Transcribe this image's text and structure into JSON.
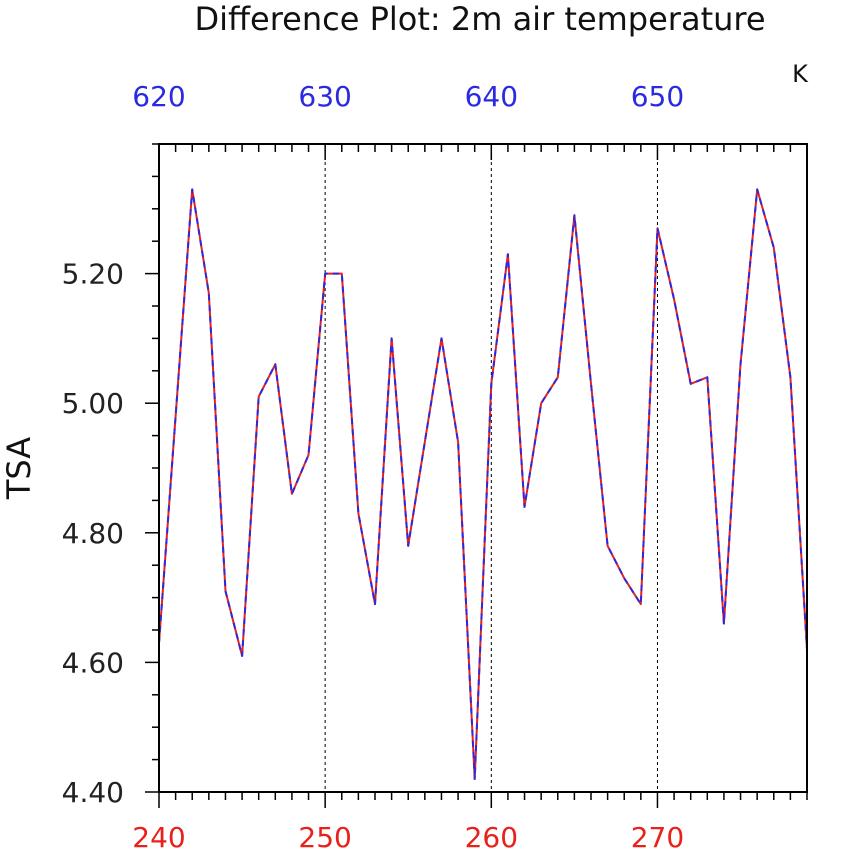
{
  "chart_data": {
    "type": "line",
    "title": "Difference Plot: 2m air temperature",
    "units": "K",
    "ylabel": "TSA",
    "ylim": [
      4.4,
      5.4
    ],
    "xlim_bottom": [
      240,
      279
    ],
    "xlim_top": [
      620,
      659
    ],
    "bottom_ticks": [
      240,
      250,
      260,
      270
    ],
    "top_ticks": [
      620,
      630,
      640,
      650
    ],
    "y_ticks": [
      4.4,
      4.6,
      4.8,
      5.0,
      5.2
    ],
    "y_tick_labels": [
      "4.40",
      "4.60",
      "4.80",
      "5.00",
      "5.20"
    ],
    "grid": "vertical dashed at major top ticks",
    "bottom_axis_color": "#e8211a",
    "top_axis_color": "#2a2ae0",
    "series": [
      {
        "axis": "bottom",
        "color": "#e8211a",
        "style": "solid",
        "x": [
          240,
          241,
          242,
          243,
          244,
          245,
          246,
          247,
          248,
          249,
          250,
          251,
          252,
          253,
          254,
          255,
          256,
          257,
          258,
          259,
          260,
          261,
          262,
          263,
          264,
          265,
          266,
          267,
          268,
          269,
          270,
          271,
          272,
          273,
          274,
          275,
          276,
          277,
          278,
          279
        ],
        "values": [
          4.63,
          4.98,
          5.33,
          5.17,
          4.71,
          4.61,
          5.01,
          5.06,
          4.86,
          4.92,
          5.2,
          5.2,
          4.83,
          4.69,
          5.1,
          4.78,
          4.94,
          5.1,
          4.94,
          4.42,
          5.03,
          5.23,
          4.84,
          5.0,
          5.04,
          5.29,
          5.03,
          4.78,
          4.73,
          4.69,
          5.27,
          5.16,
          5.03,
          5.04,
          4.66,
          5.06,
          5.33,
          5.24,
          5.04,
          4.62
        ]
      },
      {
        "axis": "top",
        "color": "#2a2ae0",
        "style": "dashed",
        "x": [
          620,
          621,
          622,
          623,
          624,
          625,
          626,
          627,
          628,
          629,
          630,
          631,
          632,
          633,
          634,
          635,
          636,
          637,
          638,
          639,
          640,
          641,
          642,
          643,
          644,
          645,
          646,
          647,
          648,
          649,
          650,
          651,
          652,
          653,
          654,
          655,
          656,
          657,
          658,
          659
        ],
        "values": [
          4.63,
          4.98,
          5.33,
          5.17,
          4.71,
          4.61,
          5.01,
          5.06,
          4.86,
          4.92,
          5.2,
          5.2,
          4.83,
          4.69,
          5.1,
          4.78,
          4.94,
          5.1,
          4.94,
          4.42,
          5.03,
          5.23,
          4.84,
          5.0,
          5.04,
          5.29,
          5.03,
          4.78,
          4.73,
          4.69,
          5.27,
          5.16,
          5.03,
          5.04,
          4.66,
          5.06,
          5.33,
          5.24,
          5.04,
          4.62
        ]
      }
    ]
  }
}
